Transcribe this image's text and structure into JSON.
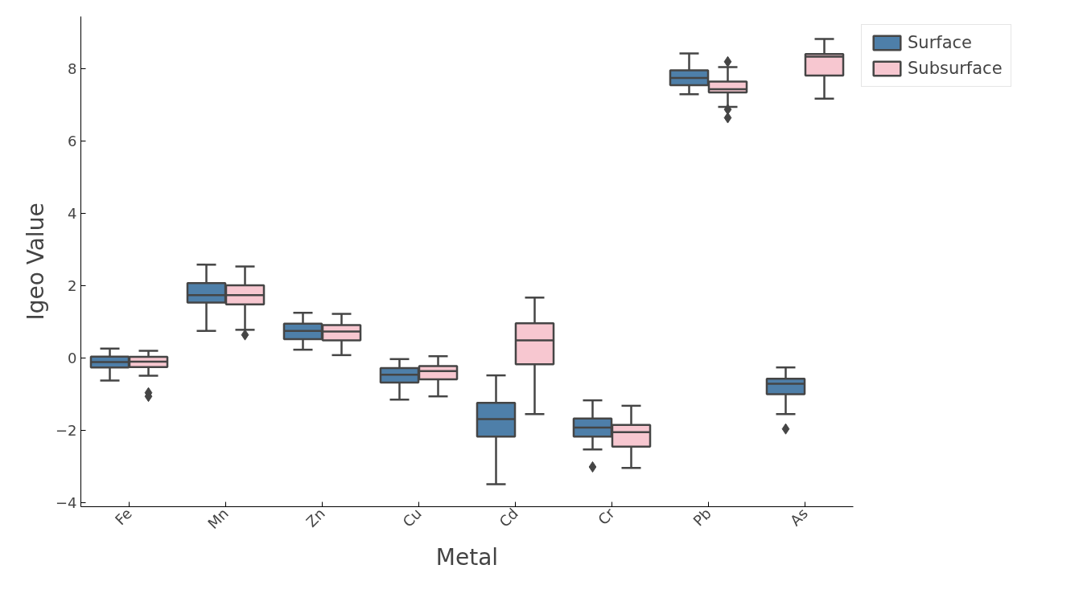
{
  "chart_data": {
    "type": "box",
    "xlabel": "Metal",
    "ylabel": "Igeo Value",
    "categories": [
      "Fe",
      "Mn",
      "Zn",
      "Cu",
      "Cd",
      "Cr",
      "Pb",
      "As"
    ],
    "ylim": [
      -4.1,
      9.45
    ],
    "yticks": [
      {
        "value": -4,
        "label": "−4"
      },
      {
        "value": -2,
        "label": "−2"
      },
      0,
      2,
      4,
      6,
      8
    ],
    "grid": false,
    "legend": "top right",
    "series": [
      {
        "name": "Surface",
        "color": "#4e7fa9",
        "boxes": [
          {
            "low": -0.61,
            "q1": -0.25,
            "median": -0.1,
            "q3": 0.05,
            "high": 0.27
          },
          {
            "low": 0.76,
            "q1": 1.54,
            "median": 1.75,
            "q3": 2.08,
            "high": 2.59
          },
          {
            "low": 0.24,
            "q1": 0.53,
            "median": 0.76,
            "q3": 0.96,
            "high": 1.26
          },
          {
            "low": -1.14,
            "q1": -0.67,
            "median": -0.45,
            "q3": -0.27,
            "high": -0.02
          },
          {
            "low": -3.48,
            "q1": -2.16,
            "median": -1.68,
            "q3": -1.23,
            "high": -0.47
          },
          {
            "low": -2.52,
            "q1": -2.16,
            "median": -1.91,
            "q3": -1.66,
            "high": -1.16,
            "outliers": [
              -3.0
            ]
          },
          {
            "low": 7.3,
            "q1": 7.55,
            "median": 7.75,
            "q3": 7.96,
            "high": 8.43
          },
          {
            "low": -1.54,
            "q1": -0.99,
            "median": -0.7,
            "q3": -0.56,
            "high": -0.25,
            "outliers": [
              -1.95
            ]
          }
        ]
      },
      {
        "name": "Subsurface",
        "color": "#f7c7d0",
        "boxes": [
          {
            "low": -0.48,
            "q1": -0.24,
            "median": -0.09,
            "q3": 0.04,
            "high": 0.21,
            "outliers": [
              -0.95,
              -1.05
            ]
          },
          {
            "low": 0.79,
            "q1": 1.49,
            "median": 1.75,
            "q3": 2.02,
            "high": 2.54,
            "outliers": [
              0.65
            ]
          },
          {
            "low": 0.09,
            "q1": 0.5,
            "median": 0.74,
            "q3": 0.92,
            "high": 1.23
          },
          {
            "low": -1.05,
            "q1": -0.58,
            "median": -0.35,
            "q3": -0.21,
            "high": 0.06
          },
          {
            "low": -1.54,
            "q1": -0.16,
            "median": 0.5,
            "q3": 0.97,
            "high": 1.68
          },
          {
            "low": -3.03,
            "q1": -2.44,
            "median": -2.04,
            "q3": -1.84,
            "high": -1.31
          },
          {
            "low": 6.95,
            "q1": 7.35,
            "median": 7.44,
            "q3": 7.65,
            "high": 8.05,
            "outliers": [
              8.2,
              6.88,
              6.65
            ]
          },
          {
            "low": 7.18,
            "q1": 7.82,
            "median": 8.34,
            "q3": 8.41,
            "high": 8.83
          }
        ]
      }
    ]
  }
}
